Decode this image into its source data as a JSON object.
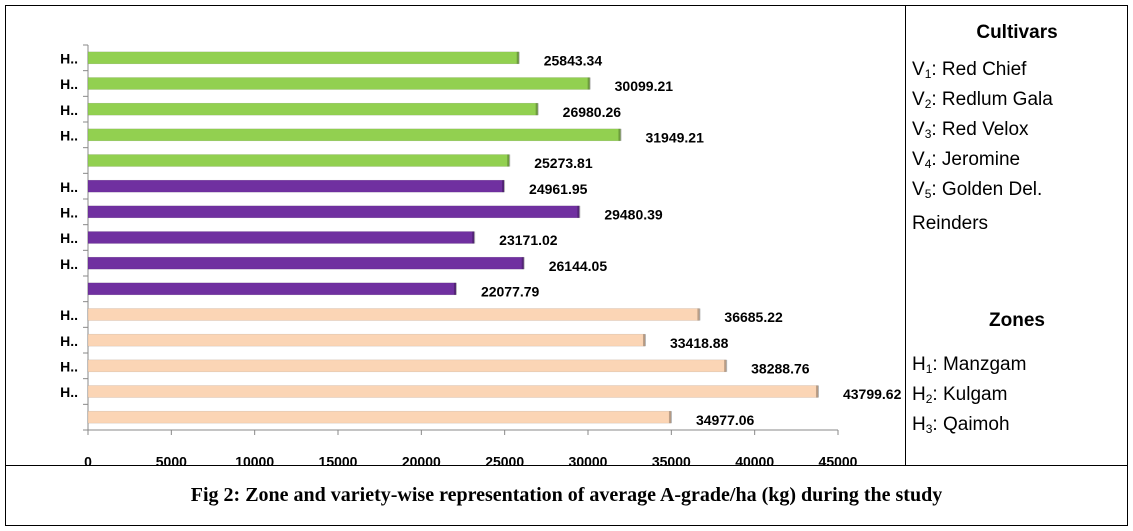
{
  "chart_data": {
    "type": "bar",
    "orientation": "horizontal",
    "categories": [
      "H..",
      "H..",
      "H..",
      "H..",
      null,
      "H..",
      "H..",
      "H..",
      "H..",
      null,
      "H..",
      "H..",
      "H..",
      "H..",
      null
    ],
    "values": [
      25843.34,
      30099.21,
      26980.26,
      31949.21,
      25273.81,
      24961.95,
      29480.39,
      23171.02,
      26144.05,
      22077.79,
      36685.22,
      33418.88,
      38288.76,
      43799.62,
      34977.06
    ],
    "colors": [
      "#92d050",
      "#92d050",
      "#92d050",
      "#92d050",
      "#92d050",
      "#7030a0",
      "#7030a0",
      "#7030a0",
      "#7030a0",
      "#7030a0",
      "#fbd5b5",
      "#fbd5b5",
      "#fbd5b5",
      "#fbd5b5",
      "#fbd5b5"
    ],
    "xlim": [
      0,
      45000
    ],
    "xticks": [
      0,
      5000,
      10000,
      15000,
      20000,
      25000,
      30000,
      35000,
      40000,
      45000
    ],
    "grid": false
  },
  "legend": {
    "cultivars_title": "Cultivars",
    "cultivars": [
      {
        "symbol": "V",
        "sub": "1",
        "name": ": Red Chief"
      },
      {
        "symbol": "V",
        "sub": "2",
        "name": ": Redlum Gala"
      },
      {
        "symbol": "V",
        "sub": "3",
        "name": ": Red Velox"
      },
      {
        "symbol": "V",
        "sub": "4",
        "name": ": Jeromine"
      },
      {
        "symbol": "V",
        "sub": "5",
        "name": ": Golden Del. Reinders"
      }
    ],
    "zones_title": "Zones",
    "zones": [
      {
        "symbol": "H",
        "sub": "1",
        "name": ": Manzgam"
      },
      {
        "symbol": "H",
        "sub": "2",
        "name": ": Kulgam"
      },
      {
        "symbol": "H",
        "sub": "3",
        "name": ": Qaimoh"
      }
    ]
  },
  "caption": "Fig 2: Zone and variety-wise representation of average A-grade/ha (kg) during the study"
}
